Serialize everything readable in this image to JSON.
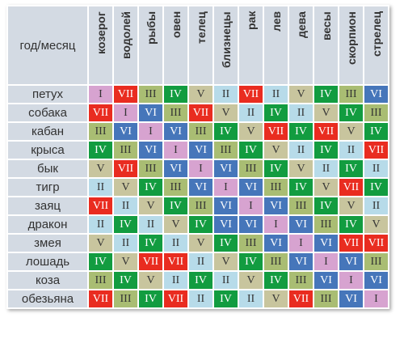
{
  "header": {
    "corner_label": "год/месяц",
    "months": [
      "козерог",
      "водолей",
      "рыбы",
      "овен",
      "телец",
      "близнецы",
      "рак",
      "лев",
      "дева",
      "весы",
      "скорпион",
      "стрелец"
    ]
  },
  "colors": {
    "I": "#d7a3d0",
    "II": "#b7dbe9",
    "III": "#a9bd73",
    "IV": "#129c40",
    "V": "#c8c59e",
    "VI": "#4676ba",
    "VII": "#e92c20"
  },
  "text_colors": {
    "I": "#333333",
    "II": "#333333",
    "III": "#333333",
    "IV": "#ffffff",
    "V": "#333333",
    "VI": "#ffffff",
    "VII": "#ffffff"
  },
  "rows": [
    {
      "year": "петух",
      "values": [
        "I",
        "VII",
        "III",
        "IV",
        "V",
        "II",
        "VII",
        "II",
        "V",
        "IV",
        "III",
        "VI"
      ]
    },
    {
      "year": "собака",
      "values": [
        "VII",
        "I",
        "VI",
        "III",
        "VII",
        "V",
        "II",
        "IV",
        "II",
        "V",
        "IV",
        "III"
      ]
    },
    {
      "year": "кабан",
      "values": [
        "III",
        "VI",
        "I",
        "VI",
        "III",
        "IV",
        "V",
        "VII",
        "IV",
        "VII",
        "V",
        "IV"
      ]
    },
    {
      "year": "крыса",
      "values": [
        "IV",
        "III",
        "VI",
        "I",
        "VI",
        "III",
        "IV",
        "V",
        "II",
        "IV",
        "II",
        "VII"
      ]
    },
    {
      "year": "бык",
      "values": [
        "V",
        "VII",
        "III",
        "VI",
        "I",
        "VI",
        "III",
        "IV",
        "V",
        "II",
        "IV",
        "II"
      ]
    },
    {
      "year": "тигр",
      "values": [
        "II",
        "V",
        "IV",
        "III",
        "VI",
        "I",
        "VI",
        "III",
        "IV",
        "V",
        "VII",
        "IV"
      ]
    },
    {
      "year": "заяц",
      "values": [
        "VII",
        "II",
        "V",
        "IV",
        "III",
        "VI",
        "I",
        "VI",
        "III",
        "IV",
        "V",
        "II"
      ]
    },
    {
      "year": "дракон",
      "values": [
        "II",
        "IV",
        "II",
        "V",
        "IV",
        "VI",
        "VI",
        "I",
        "VI",
        "III",
        "IV",
        "V"
      ]
    },
    {
      "year": "змея",
      "values": [
        "V",
        "II",
        "IV",
        "II",
        "V",
        "IV",
        "III",
        "VI",
        "I",
        "VI",
        "VII",
        "VII"
      ]
    },
    {
      "year": "лошадь",
      "values": [
        "IV",
        "V",
        "VII",
        "VII",
        "II",
        "V",
        "IV",
        "III",
        "VI",
        "I",
        "VI",
        "III"
      ]
    },
    {
      "year": "коза",
      "values": [
        "III",
        "IV",
        "V",
        "II",
        "IV",
        "II",
        "V",
        "IV",
        "III",
        "VI",
        "I",
        "VI"
      ]
    },
    {
      "year": "обезьяна",
      "values": [
        "VII",
        "III",
        "IV",
        "VII",
        "II",
        "IV",
        "II",
        "V",
        "VII",
        "III",
        "VI",
        "I"
      ]
    }
  ]
}
